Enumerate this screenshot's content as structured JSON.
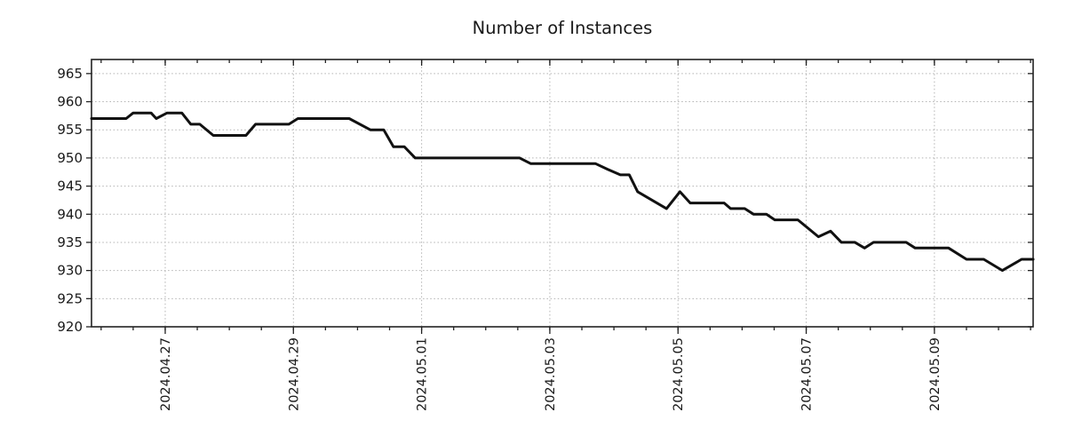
{
  "chart_data": {
    "type": "line",
    "title": "Number of Instances",
    "x_axis": {
      "unit": "days since 2024-04-27 00:00",
      "lim": [
        -1.15,
        13.54
      ],
      "major_ticks": [
        {
          "day": 0,
          "label": "2024.04.27"
        },
        {
          "day": 2,
          "label": "2024.04.29"
        },
        {
          "day": 4,
          "label": "2024.05.01"
        },
        {
          "day": 6,
          "label": "2024.05.03"
        },
        {
          "day": 8,
          "label": "2024.05.05"
        },
        {
          "day": 10,
          "label": "2024.05.07"
        },
        {
          "day": 12,
          "label": "2024.05.09"
        }
      ],
      "minor_tick_step": 0.5
    },
    "y_axis": {
      "lim": [
        920,
        967.5
      ],
      "ticks": [
        920,
        925,
        930,
        935,
        940,
        945,
        950,
        955,
        960,
        965
      ]
    },
    "series": [
      {
        "name": "instances",
        "color": "#111111",
        "points": [
          [
            -1.15,
            957
          ],
          [
            -0.61,
            957
          ],
          [
            -0.5,
            958
          ],
          [
            -0.22,
            958
          ],
          [
            -0.14,
            957
          ],
          [
            0.03,
            958
          ],
          [
            0.26,
            958
          ],
          [
            0.4,
            956
          ],
          [
            0.54,
            956
          ],
          [
            0.75,
            954
          ],
          [
            1.26,
            954
          ],
          [
            1.41,
            956
          ],
          [
            1.93,
            956
          ],
          [
            2.07,
            957
          ],
          [
            2.87,
            957
          ],
          [
            3.2,
            955
          ],
          [
            3.41,
            955
          ],
          [
            3.56,
            952
          ],
          [
            3.73,
            952
          ],
          [
            3.9,
            950
          ],
          [
            5.53,
            950
          ],
          [
            5.7,
            949
          ],
          [
            6.71,
            949
          ],
          [
            6.9,
            948
          ],
          [
            7.1,
            947
          ],
          [
            7.24,
            947
          ],
          [
            7.37,
            944
          ],
          [
            7.82,
            941
          ],
          [
            8.03,
            944
          ],
          [
            8.19,
            942
          ],
          [
            8.72,
            942
          ],
          [
            8.82,
            941
          ],
          [
            9.04,
            941
          ],
          [
            9.18,
            940
          ],
          [
            9.38,
            940
          ],
          [
            9.51,
            939
          ],
          [
            9.87,
            939
          ],
          [
            10.19,
            936
          ],
          [
            10.38,
            937
          ],
          [
            10.55,
            935
          ],
          [
            10.76,
            935
          ],
          [
            10.91,
            934
          ],
          [
            11.05,
            935
          ],
          [
            11.56,
            935
          ],
          [
            11.7,
            934
          ],
          [
            12.22,
            934
          ],
          [
            12.5,
            932
          ],
          [
            12.77,
            932
          ],
          [
            13.06,
            930
          ],
          [
            13.36,
            932
          ],
          [
            13.54,
            932
          ]
        ]
      }
    ],
    "grid": {
      "show": true,
      "style": "dotted",
      "color": "#b3b3b3"
    }
  }
}
